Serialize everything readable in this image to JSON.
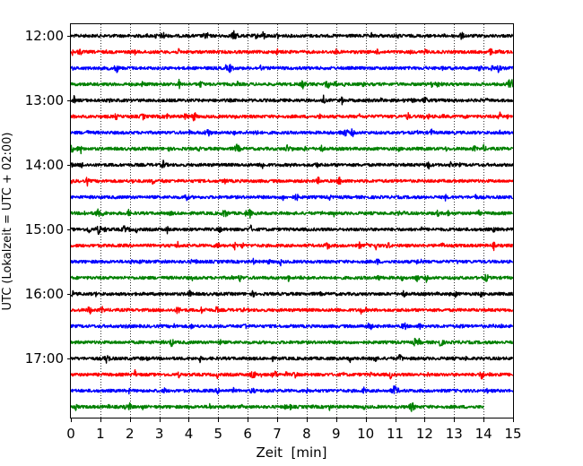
{
  "chart_data": {
    "type": "line",
    "subtype": "helicorder",
    "xlabel": "Zeit  [min]",
    "ylabel": "UTC (Lokalzeit = UTC + 02:00)",
    "xlim": [
      0,
      15
    ],
    "x_ticks": [
      "0",
      "1",
      "2",
      "3",
      "4",
      "5",
      "6",
      "7",
      "8",
      "9",
      "10",
      "11",
      "12",
      "13",
      "14",
      "15"
    ],
    "y_ticks": [
      {
        "label": "12:00",
        "trace_index": 0
      },
      {
        "label": "13:00",
        "trace_index": 4
      },
      {
        "label": "14:00",
        "trace_index": 8
      },
      {
        "label": "15:00",
        "trace_index": 12
      },
      {
        "label": "16:00",
        "trace_index": 16
      },
      {
        "label": "17:00",
        "trace_index": 20
      }
    ],
    "minutes_per_trace": 15,
    "color_cycle": [
      "#000000",
      "#ff0000",
      "#0000ff",
      "#008000"
    ],
    "grid": {
      "x": true,
      "style": "dotted"
    },
    "series": [
      {
        "start": "12:00",
        "end_minute": 15,
        "color": "#000000"
      },
      {
        "start": "12:15",
        "end_minute": 15,
        "color": "#ff0000"
      },
      {
        "start": "12:30",
        "end_minute": 15,
        "color": "#0000ff"
      },
      {
        "start": "12:45",
        "end_minute": 15,
        "color": "#008000"
      },
      {
        "start": "13:00",
        "end_minute": 15,
        "color": "#000000"
      },
      {
        "start": "13:15",
        "end_minute": 15,
        "color": "#ff0000"
      },
      {
        "start": "13:30",
        "end_minute": 15,
        "color": "#0000ff"
      },
      {
        "start": "13:45",
        "end_minute": 15,
        "color": "#008000"
      },
      {
        "start": "14:00",
        "end_minute": 15,
        "color": "#000000"
      },
      {
        "start": "14:15",
        "end_minute": 15,
        "color": "#ff0000"
      },
      {
        "start": "14:30",
        "end_minute": 15,
        "color": "#0000ff"
      },
      {
        "start": "14:45",
        "end_minute": 15,
        "color": "#008000"
      },
      {
        "start": "15:00",
        "end_minute": 15,
        "color": "#000000"
      },
      {
        "start": "15:15",
        "end_minute": 15,
        "color": "#ff0000"
      },
      {
        "start": "15:30",
        "end_minute": 15,
        "color": "#0000ff"
      },
      {
        "start": "15:45",
        "end_minute": 15,
        "color": "#008000"
      },
      {
        "start": "16:00",
        "end_minute": 15,
        "color": "#000000"
      },
      {
        "start": "16:15",
        "end_minute": 15,
        "color": "#ff0000"
      },
      {
        "start": "16:30",
        "end_minute": 15,
        "color": "#0000ff"
      },
      {
        "start": "16:45",
        "end_minute": 15,
        "color": "#008000"
      },
      {
        "start": "17:00",
        "end_minute": 15,
        "color": "#000000"
      },
      {
        "start": "17:15",
        "end_minute": 15,
        "color": "#ff0000"
      },
      {
        "start": "17:30",
        "end_minute": 15,
        "color": "#0000ff"
      },
      {
        "start": "17:45",
        "end_minute": 14.0,
        "color": "#008000"
      }
    ]
  }
}
